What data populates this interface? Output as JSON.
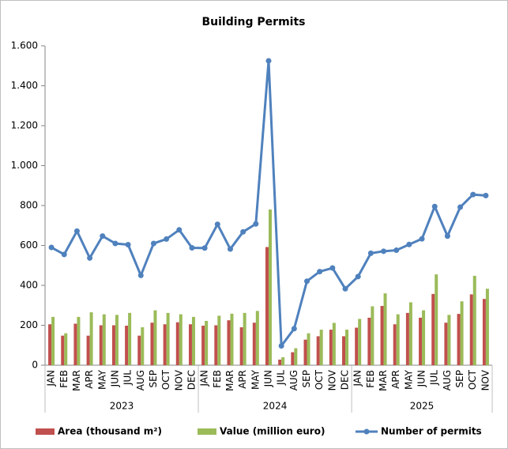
{
  "chart_data": {
    "type": "bar-line",
    "title": "Building Permits",
    "groups": [
      {
        "label": "2023",
        "categories": [
          "JAN",
          "FEB",
          "MAR",
          "APR",
          "MAY",
          "JUN",
          "JUL",
          "AUG",
          "SEP",
          "OCT",
          "NOV",
          "DEC"
        ]
      },
      {
        "label": "2024",
        "categories": [
          "JAN",
          "FEB",
          "MAR",
          "APR",
          "MAY",
          "JUN",
          "JUL",
          "AUG",
          "SEP",
          "OCT",
          "NOV",
          "DEC"
        ]
      },
      {
        "label": "2025",
        "categories": [
          "JAN",
          "FEB",
          "MAR",
          "APR",
          "MAY",
          "JUN",
          "JUL",
          "AUG",
          "SEP",
          "OCT",
          "NOV"
        ]
      }
    ],
    "series": [
      {
        "name": "Area (thousand m²)",
        "type": "bar",
        "color": "#c0504d",
        "values": [
          205,
          148,
          208,
          148,
          200,
          200,
          198,
          148,
          213,
          205,
          215,
          205,
          198,
          200,
          225,
          190,
          213,
          592,
          28,
          65,
          128,
          145,
          178,
          145,
          188,
          238,
          297,
          205,
          262,
          238,
          357,
          213,
          257,
          355,
          332
        ]
      },
      {
        "name": "Value (million euro)",
        "type": "bar",
        "color": "#9bbb59",
        "values": [
          242,
          160,
          242,
          265,
          255,
          252,
          262,
          190,
          275,
          262,
          255,
          242,
          222,
          248,
          258,
          262,
          272,
          780,
          40,
          85,
          160,
          178,
          212,
          178,
          232,
          295,
          360,
          255,
          315,
          275,
          455,
          252,
          320,
          448,
          383
        ]
      },
      {
        "name": "Number of permits",
        "type": "line",
        "color": "#4f81bd",
        "values": [
          590,
          555,
          672,
          537,
          647,
          610,
          604,
          450,
          610,
          632,
          678,
          588,
          587,
          706,
          582,
          668,
          708,
          1525,
          97,
          183,
          421,
          469,
          487,
          383,
          444,
          561,
          571,
          576,
          605,
          633,
          795,
          647,
          792,
          855,
          850
        ]
      }
    ],
    "ylim": [
      0,
      1600
    ],
    "yticks": [
      0,
      200,
      400,
      600,
      800,
      {
        "value": 1000,
        "label": "1.000"
      },
      {
        "value": 1200,
        "label": "1.200"
      },
      {
        "value": 1400,
        "label": "1.400"
      },
      {
        "value": 1600,
        "label": "1.600"
      }
    ],
    "grid": false,
    "legend": "bottom"
  }
}
